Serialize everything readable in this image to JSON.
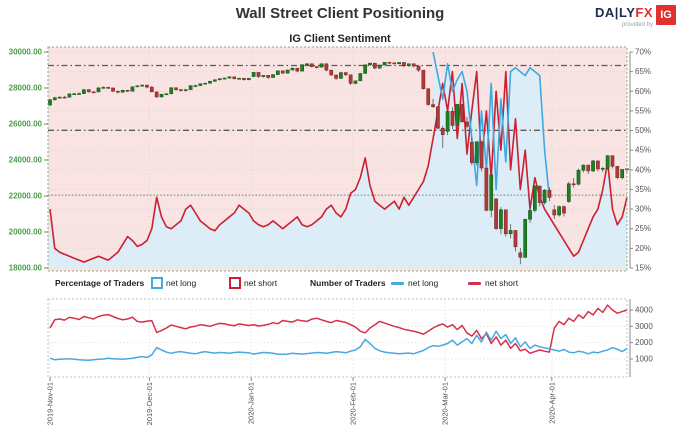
{
  "header": {
    "title": "Wall Street Client Positioning",
    "logo": {
      "brand_daily": "DA|LY",
      "brand_fx": "FX",
      "provided_by": "provided by",
      "ig_badge": "IG"
    }
  },
  "chart_title": "IG Client Sentiment",
  "legend": {
    "pct_header": "Percentage of Traders",
    "count_header": "Number of Traders",
    "net_long": "net long",
    "net_short": "net short"
  },
  "colors": {
    "pink_fill": "#f9e3e3",
    "blue_fill": "#dcedf7",
    "red_line": "#cc2030",
    "blue_line": "#3fa9e0",
    "candle_up": "#1f7d23",
    "candle_up_edge": "#145716",
    "candle_down": "#b03a3a",
    "candle_down_edge": "#7e2626",
    "wick": "#555555",
    "grid_green": "#c7e2c7",
    "grid_green_light": "#d9ecd9",
    "grid_gray": "#dcdcdc",
    "border_green": "#84af84",
    "border_gray": "#c0c0c0",
    "axis_green": "#4a9e4a",
    "axis_gray": "#555555",
    "dashdot": "#5a5a5a",
    "speckle": "#7d7d7d",
    "count_red": "#d62f49",
    "count_blue": "#49a8e0",
    "date_label": "#49505e",
    "tick_gray": "#888888"
  },
  "chart_data": [
    {
      "type": "candlestick+line",
      "title": "IG Client Sentiment",
      "price_axis": {
        "min": 18000,
        "max": 30000,
        "ticks": [
          "18000.00",
          "20000.00",
          "22000.00",
          "24000.00",
          "26000.00",
          "28000.00",
          "30000.00"
        ]
      },
      "pct_axis": {
        "min": 15,
        "max": 70,
        "ticks": [
          "15%",
          "20%",
          "25%",
          "30%",
          "35%",
          "40%",
          "45%",
          "50%",
          "55%",
          "60%",
          "65%",
          "70%"
        ]
      },
      "levels": [
        {
          "value": 29250,
          "style": "dashdot"
        },
        {
          "value": 25650,
          "style": "dashdot"
        },
        {
          "value": 22050,
          "style": "speckle"
        }
      ],
      "months": [
        {
          "label": "2019-Nov-01",
          "i": 0
        },
        {
          "label": "2019-Dec-01",
          "i": 20.5
        },
        {
          "label": "2020-Jan-01",
          "i": 41.5
        },
        {
          "label": "2020-Feb-01",
          "i": 62.5
        },
        {
          "label": "2020-Mar-01",
          "i": 81.5
        },
        {
          "label": "2020-Apr-01",
          "i": 103.5
        }
      ],
      "candles": [
        [
          27050,
          27390,
          27010,
          27347
        ],
        [
          27347,
          27510,
          27300,
          27462
        ],
        [
          27462,
          27530,
          27410,
          27493
        ],
        [
          27493,
          27560,
          27420,
          27492
        ],
        [
          27492,
          27700,
          27460,
          27675
        ],
        [
          27675,
          27720,
          27620,
          27681
        ],
        [
          27681,
          27750,
          27630,
          27691
        ],
        [
          27691,
          27940,
          27660,
          27910
        ],
        [
          27910,
          27930,
          27740,
          27784
        ],
        [
          27784,
          27820,
          27720,
          27783
        ],
        [
          27783,
          28040,
          27760,
          28005
        ],
        [
          28005,
          28090,
          27960,
          28036
        ],
        [
          28036,
          28070,
          27950,
          28004
        ],
        [
          28004,
          28010,
          27780,
          27822
        ],
        [
          27822,
          27850,
          27700,
          27767
        ],
        [
          27767,
          27900,
          27740,
          27876
        ],
        [
          27876,
          27890,
          27770,
          27821
        ],
        [
          27821,
          28090,
          27800,
          28066
        ],
        [
          28066,
          28150,
          28030,
          28121
        ],
        [
          28121,
          28180,
          28060,
          28164
        ],
        [
          28164,
          28170,
          27980,
          28051
        ],
        [
          28051,
          28100,
          27770,
          27783
        ],
        [
          27783,
          27800,
          27460,
          27503
        ],
        [
          27503,
          27680,
          27470,
          27650
        ],
        [
          27650,
          27720,
          27610,
          27677
        ],
        [
          27677,
          28040,
          27650,
          28015
        ],
        [
          28015,
          28030,
          27850,
          27910
        ],
        [
          27910,
          27950,
          27800,
          27882
        ],
        [
          27882,
          27930,
          27800,
          27912
        ],
        [
          27912,
          28150,
          27880,
          28132
        ],
        [
          28132,
          28180,
          28070,
          28135
        ],
        [
          28135,
          28260,
          28100,
          28235
        ],
        [
          28235,
          28300,
          28190,
          28267
        ],
        [
          28267,
          28400,
          28230,
          28376
        ],
        [
          28376,
          28480,
          28340,
          28455
        ],
        [
          28455,
          28540,
          28420,
          28515
        ],
        [
          28515,
          28580,
          28480,
          28551
        ],
        [
          28551,
          28650,
          28520,
          28621
        ],
        [
          28621,
          28640,
          28470,
          28516
        ],
        [
          28516,
          28580,
          28490,
          28538
        ],
        [
          28538,
          28560,
          28410,
          28462
        ],
        [
          28462,
          28560,
          28430,
          28538
        ],
        [
          28638,
          28890,
          28600,
          28869
        ],
        [
          28869,
          28880,
          28560,
          28635
        ],
        [
          28635,
          28720,
          28580,
          28704
        ],
        [
          28704,
          28710,
          28500,
          28584
        ],
        [
          28584,
          28770,
          28560,
          28745
        ],
        [
          28745,
          28980,
          28720,
          28957
        ],
        [
          28957,
          28960,
          28780,
          28824
        ],
        [
          28824,
          29010,
          28800,
          29001
        ],
        [
          29001,
          29130,
          28970,
          29103
        ],
        [
          29103,
          29110,
          28870,
          28940
        ],
        [
          28940,
          29310,
          28920,
          29297
        ],
        [
          29297,
          29370,
          29250,
          29348
        ],
        [
          29348,
          29360,
          29140,
          29186
        ],
        [
          29186,
          29230,
          29090,
          29160
        ],
        [
          29160,
          29360,
          29130,
          29348
        ],
        [
          29348,
          29350,
          28940,
          28990
        ],
        [
          28990,
          29020,
          28670,
          28723
        ],
        [
          28723,
          28750,
          28440,
          28535
        ],
        [
          28535,
          28880,
          28500,
          28859
        ],
        [
          28859,
          28870,
          28660,
          28734
        ],
        [
          28734,
          28750,
          28170,
          28256
        ],
        [
          28256,
          28420,
          28200,
          28400
        ],
        [
          28400,
          28820,
          28380,
          28808
        ],
        [
          28808,
          29310,
          28780,
          29290
        ],
        [
          29290,
          29410,
          29220,
          29380
        ],
        [
          29380,
          29390,
          29050,
          29103
        ],
        [
          29103,
          29290,
          29060,
          29277
        ],
        [
          29277,
          29440,
          29250,
          29430
        ],
        [
          29430,
          29450,
          29340,
          29398
        ],
        [
          29398,
          29420,
          29300,
          29348
        ],
        [
          29348,
          29440,
          29320,
          29420
        ],
        [
          29420,
          29430,
          29150,
          29232
        ],
        [
          29232,
          29360,
          29180,
          29348
        ],
        [
          29348,
          29360,
          29150,
          29220
        ],
        [
          29220,
          29230,
          28890,
          28993
        ],
        [
          28993,
          29000,
          27910,
          27961
        ],
        [
          27961,
          27980,
          27020,
          27081
        ],
        [
          27081,
          27400,
          26900,
          26958
        ],
        [
          26958,
          26970,
          25710,
          25767
        ],
        [
          25767,
          25900,
          24680,
          25409
        ],
        [
          25590,
          26710,
          25390,
          26703
        ],
        [
          26703,
          26930,
          25710,
          25917
        ],
        [
          25917,
          27100,
          25870,
          27091
        ],
        [
          27091,
          27110,
          26070,
          26121
        ],
        [
          26121,
          26390,
          25750,
          25865
        ],
        [
          24990,
          25280,
          23710,
          23851
        ],
        [
          23851,
          25030,
          23690,
          25018
        ],
        [
          25018,
          25040,
          23360,
          23553
        ],
        [
          23553,
          23570,
          21150,
          21200
        ],
        [
          21200,
          23190,
          20830,
          23186
        ],
        [
          21840,
          21860,
          20120,
          20189
        ],
        [
          20189,
          21380,
          19880,
          21237
        ],
        [
          21237,
          21250,
          19750,
          19899
        ],
        [
          19899,
          20440,
          19650,
          20087
        ],
        [
          20087,
          20100,
          18920,
          19174
        ],
        [
          18850,
          19120,
          18210,
          18592
        ],
        [
          18592,
          20740,
          18550,
          20705
        ],
        [
          20705,
          21720,
          20510,
          21200
        ],
        [
          21200,
          22600,
          21090,
          22552
        ],
        [
          22552,
          22580,
          21420,
          21637
        ],
        [
          21637,
          22380,
          21520,
          22327
        ],
        [
          22327,
          22480,
          21710,
          21917
        ],
        [
          21230,
          21490,
          20730,
          20944
        ],
        [
          20944,
          21480,
          20860,
          21413
        ],
        [
          21413,
          21480,
          20860,
          21053
        ],
        [
          21690,
          22790,
          21620,
          22680
        ],
        [
          22680,
          22990,
          22470,
          22654
        ],
        [
          22654,
          23520,
          22600,
          23434
        ],
        [
          23434,
          23760,
          23310,
          23719
        ],
        [
          23719,
          23730,
          23230,
          23391
        ],
        [
          23391,
          24010,
          23320,
          23950
        ],
        [
          23950,
          23960,
          23370,
          23504
        ],
        [
          23504,
          23620,
          23330,
          23538
        ],
        [
          23538,
          24270,
          23450,
          24242
        ],
        [
          24242,
          24250,
          23530,
          23651
        ],
        [
          23651,
          23670,
          22940,
          23018
        ],
        [
          23018,
          23490,
          22920,
          23476
        ],
        [
          23476,
          23520,
          23290,
          23515
        ]
      ],
      "net_short_pct": [
        30,
        20,
        19,
        18.5,
        18,
        17.5,
        17,
        16.5,
        17,
        17.5,
        18,
        17.5,
        17,
        18,
        19,
        21,
        23,
        22,
        20.5,
        21,
        22,
        25,
        33,
        28,
        25.5,
        25,
        26,
        27,
        30,
        31,
        29,
        27,
        26,
        25,
        24.5,
        26,
        27,
        28,
        29,
        31,
        30,
        29,
        27,
        26,
        25.5,
        26,
        27,
        26,
        25,
        26,
        27,
        28,
        26,
        25.5,
        26,
        27,
        28,
        30,
        31,
        29,
        28,
        30,
        34,
        35,
        38,
        43,
        36,
        32,
        31,
        30,
        31,
        32,
        30,
        33,
        31,
        33,
        35,
        37,
        41,
        48,
        55,
        62,
        55,
        65,
        48,
        62,
        44,
        55,
        65,
        42,
        55,
        38,
        60,
        45,
        65,
        40,
        53,
        35,
        45,
        30,
        38,
        33,
        30,
        28,
        26,
        24,
        22,
        20,
        18,
        19,
        22,
        25,
        28,
        30,
        35,
        42,
        30,
        26,
        28,
        33
      ],
      "net_long_pct": {
        "start_index": 79,
        "values": [
          70,
          64,
          58,
          67,
          60,
          63,
          65,
          60,
          48,
          36,
          55,
          40,
          62,
          35,
          58,
          42,
          65,
          66,
          65,
          64,
          66,
          65,
          64,
          45,
          33
        ]
      }
    },
    {
      "type": "line",
      "count_axis": {
        "ticks": [
          "1000",
          "2000",
          "3000",
          "4000"
        ]
      },
      "net_short_count": [
        2900,
        3400,
        3450,
        3380,
        3550,
        3500,
        3420,
        3600,
        3520,
        3450,
        3600,
        3680,
        3720,
        3600,
        3480,
        3400,
        3450,
        3560,
        3300,
        3260,
        3320,
        3350,
        2620,
        2750,
        2900,
        3080,
        3000,
        2920,
        2850,
        2960,
        3010,
        3100,
        3060,
        3000,
        3100,
        3180,
        3150,
        3080,
        3040,
        3150,
        3100,
        3050,
        3100,
        3020,
        3060,
        3120,
        3220,
        3160,
        3360,
        3300,
        3260,
        3400,
        3340,
        3300,
        3440,
        3500,
        3400,
        3300,
        3220,
        3360,
        3300,
        3240,
        3100,
        2950,
        2700,
        2600,
        2900,
        3100,
        3300,
        3200,
        3100,
        3000,
        2920,
        2820,
        2760,
        2700,
        2620,
        2520,
        2700,
        2900,
        3050,
        3150,
        2950,
        3100,
        2800,
        3050,
        2600,
        2400,
        2750,
        2250,
        2550,
        1950,
        2350,
        1850,
        2150,
        1650,
        1950,
        1500,
        1600,
        1350,
        1450,
        1550,
        1480,
        1420,
        2900,
        3300,
        3100,
        3500,
        3300,
        3700,
        3500,
        3900,
        3700,
        4100,
        3850,
        4300,
        4000,
        3800,
        3900,
        4000
      ],
      "net_long_count": [
        1050,
        950,
        980,
        1000,
        1020,
        980,
        950,
        930,
        920,
        950,
        980,
        1000,
        1040,
        1010,
        1000,
        980,
        1020,
        1050,
        1100,
        1150,
        1100,
        1250,
        1700,
        1550,
        1420,
        1350,
        1420,
        1450,
        1400,
        1350,
        1320,
        1400,
        1450,
        1400,
        1360,
        1400,
        1380,
        1350,
        1400,
        1420,
        1400,
        1380,
        1300,
        1350,
        1400,
        1380,
        1350,
        1300,
        1280,
        1300,
        1350,
        1320,
        1300,
        1330,
        1360,
        1400,
        1380,
        1350,
        1400,
        1450,
        1420,
        1380,
        1480,
        1550,
        1750,
        2200,
        1950,
        1650,
        1500,
        1420,
        1380,
        1350,
        1320,
        1340,
        1360,
        1320,
        1420,
        1520,
        1700,
        1820,
        1780,
        1850,
        1950,
        2150,
        1850,
        2050,
        2250,
        1950,
        2450,
        2050,
        2650,
        2150,
        2700,
        2250,
        2500,
        1950,
        2300,
        1750,
        2050,
        1650,
        1850,
        1750,
        1680,
        1620,
        1550,
        1480,
        1580,
        1420,
        1380,
        1480,
        1420,
        1320,
        1420,
        1380,
        1480,
        1550,
        1700,
        1600,
        1450,
        1650
      ]
    }
  ]
}
